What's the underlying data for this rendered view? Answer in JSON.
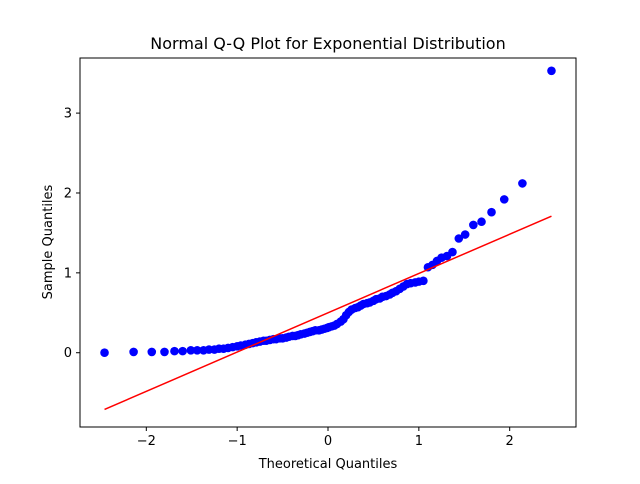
{
  "chart_data": {
    "type": "scatter",
    "title": "Normal Q-Q Plot for Exponential Distribution",
    "xlabel": "Theoretical Quantiles",
    "ylabel": "Sample Quantiles",
    "xlim": [
      -2.73,
      2.73
    ],
    "ylim": [
      -0.93,
      3.69
    ],
    "xticks": [
      -2,
      -1,
      0,
      1,
      2
    ],
    "xtick_labels": [
      "−2",
      "−1",
      "0",
      "1",
      "2"
    ],
    "yticks": [
      0,
      1,
      2,
      3
    ],
    "ytick_labels": [
      "0",
      "1",
      "2",
      "3"
    ],
    "grid": false,
    "legend": null,
    "colors": {
      "points": "#0000ff",
      "reference_line": "#ff0000",
      "axes": "#000000"
    },
    "series": [
      {
        "kind": "points",
        "x": [
          -2.46,
          -2.14,
          -1.94,
          -1.8,
          -1.69,
          -1.6,
          -1.51,
          -1.44,
          -1.37,
          -1.31,
          -1.25,
          -1.2,
          -1.15,
          -1.1,
          -1.05,
          -1.0,
          -0.96,
          -0.91,
          -0.87,
          -0.83,
          -0.79,
          -0.75,
          -0.71,
          -0.68,
          -0.64,
          -0.6,
          -0.57,
          -0.53,
          -0.5,
          -0.46,
          -0.43,
          -0.39,
          -0.36,
          -0.33,
          -0.3,
          -0.26,
          -0.23,
          -0.2,
          -0.17,
          -0.14,
          -0.1,
          -0.07,
          -0.04,
          -0.01,
          0.01,
          0.04,
          0.07,
          0.1,
          0.14,
          0.17,
          0.2,
          0.23,
          0.26,
          0.3,
          0.33,
          0.36,
          0.39,
          0.43,
          0.46,
          0.5,
          0.53,
          0.57,
          0.6,
          0.64,
          0.68,
          0.71,
          0.75,
          0.79,
          0.83,
          0.87,
          0.91,
          0.96,
          1.0,
          1.05,
          1.1,
          1.15,
          1.2,
          1.25,
          1.31,
          1.37,
          1.44,
          1.51,
          1.6,
          1.69,
          1.8,
          1.94,
          2.14,
          2.46
        ],
        "y": [
          0.0,
          0.01,
          0.01,
          0.01,
          0.02,
          0.02,
          0.03,
          0.03,
          0.03,
          0.04,
          0.04,
          0.05,
          0.05,
          0.06,
          0.07,
          0.08,
          0.09,
          0.1,
          0.11,
          0.12,
          0.13,
          0.14,
          0.15,
          0.15,
          0.16,
          0.17,
          0.17,
          0.18,
          0.18,
          0.19,
          0.2,
          0.21,
          0.21,
          0.22,
          0.23,
          0.24,
          0.25,
          0.26,
          0.27,
          0.28,
          0.28,
          0.29,
          0.3,
          0.31,
          0.32,
          0.33,
          0.34,
          0.36,
          0.39,
          0.42,
          0.47,
          0.51,
          0.54,
          0.56,
          0.57,
          0.59,
          0.61,
          0.62,
          0.63,
          0.65,
          0.67,
          0.68,
          0.7,
          0.71,
          0.73,
          0.75,
          0.77,
          0.8,
          0.83,
          0.86,
          0.87,
          0.88,
          0.89,
          0.9,
          1.07,
          1.1,
          1.15,
          1.19,
          1.21,
          1.26,
          1.43,
          1.48,
          1.6,
          1.64,
          1.76,
          1.92,
          2.12,
          3.53
        ]
      },
      {
        "kind": "line",
        "x": [
          -2.46,
          2.46
        ],
        "y": [
          -0.71,
          1.71
        ]
      }
    ]
  }
}
